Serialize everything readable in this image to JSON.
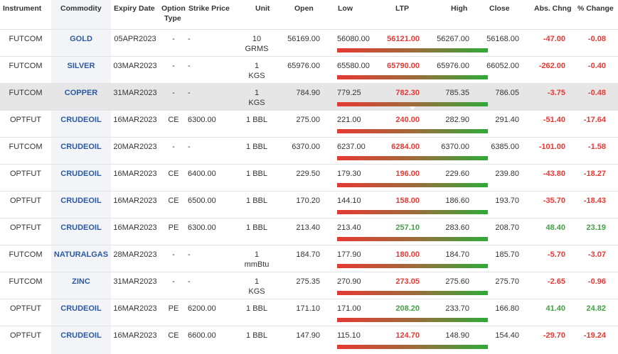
{
  "headers": {
    "instrument": "Instrument",
    "commodity": "Commodity",
    "expiry": "Expiry Date",
    "option_type_1": "Option",
    "option_type_2": "Type",
    "strike": "Strike Price",
    "unit": "Unit",
    "open": "Open",
    "low": "Low",
    "ltp": "LTP",
    "high": "High",
    "close": "Close",
    "abs_chng": "Abs. Chng",
    "pct_change": "% Change"
  },
  "colors": {
    "negative": "#e53935",
    "positive": "#43a047",
    "commodity": "#2c5aa0",
    "highlight_row": "#e6e6e6"
  },
  "rows": [
    {
      "instrument": "FUTCOM",
      "commodity": "GOLD",
      "expiry": "05APR2023",
      "option_type": "-",
      "strike": "-",
      "unit1": "10",
      "unit2": "GRMS",
      "open": "56169.00",
      "low": "56080.00",
      "ltp": "56121.00",
      "high": "56267.00",
      "close": "56168.00",
      "abs_chng": "-47.00",
      "pct_change": "-0.08",
      "direction": "neg",
      "ltp_position": 0.22
    },
    {
      "instrument": "FUTCOM",
      "commodity": "SILVER",
      "expiry": "03MAR2023",
      "option_type": "-",
      "strike": "-",
      "unit1": "1",
      "unit2": "KGS",
      "open": "65976.00",
      "low": "65580.00",
      "ltp": "65790.00",
      "high": "65976.00",
      "close": "66052.00",
      "abs_chng": "-262.00",
      "pct_change": "-0.40",
      "direction": "neg",
      "ltp_position": 0.53
    },
    {
      "instrument": "FUTCOM",
      "commodity": "COPPER",
      "expiry": "31MAR2023",
      "option_type": "-",
      "strike": "-",
      "unit1": "1",
      "unit2": "KGS",
      "open": "784.90",
      "low": "779.25",
      "ltp": "782.30",
      "high": "785.35",
      "close": "786.05",
      "abs_chng": "-3.75",
      "pct_change": "-0.48",
      "direction": "neg",
      "ltp_position": 0.5,
      "highlight": true
    },
    {
      "instrument": "OPTFUT",
      "commodity": "CRUDEOIL",
      "expiry": "16MAR2023",
      "option_type": "CE",
      "strike": "6300.00",
      "unit1": "1 BBL",
      "unit2": "",
      "open": "275.00",
      "low": "221.00",
      "ltp": "240.00",
      "high": "282.90",
      "close": "291.40",
      "abs_chng": "-51.40",
      "pct_change": "-17.64",
      "direction": "neg",
      "ltp_position": 0.31
    },
    {
      "instrument": "FUTCOM",
      "commodity": "CRUDEOIL",
      "expiry": "20MAR2023",
      "option_type": "-",
      "strike": "-",
      "unit1": "1 BBL",
      "unit2": "",
      "open": "6370.00",
      "low": "6237.00",
      "ltp": "6284.00",
      "high": "6370.00",
      "close": "6385.00",
      "abs_chng": "-101.00",
      "pct_change": "-1.58",
      "direction": "neg",
      "ltp_position": 0.35
    },
    {
      "instrument": "OPTFUT",
      "commodity": "CRUDEOIL",
      "expiry": "16MAR2023",
      "option_type": "CE",
      "strike": "6400.00",
      "unit1": "1 BBL",
      "unit2": "",
      "open": "229.50",
      "low": "179.30",
      "ltp": "196.00",
      "high": "229.60",
      "close": "239.80",
      "abs_chng": "-43.80",
      "pct_change": "-18.27",
      "direction": "neg",
      "ltp_position": 0.33
    },
    {
      "instrument": "OPTFUT",
      "commodity": "CRUDEOIL",
      "expiry": "16MAR2023",
      "option_type": "CE",
      "strike": "6500.00",
      "unit1": "1 BBL",
      "unit2": "",
      "open": "170.20",
      "low": "144.10",
      "ltp": "158.00",
      "high": "186.60",
      "close": "193.70",
      "abs_chng": "-35.70",
      "pct_change": "-18.43",
      "direction": "neg",
      "ltp_position": 0.33
    },
    {
      "instrument": "OPTFUT",
      "commodity": "CRUDEOIL",
      "expiry": "16MAR2023",
      "option_type": "PE",
      "strike": "6300.00",
      "unit1": "1 BBL",
      "unit2": "",
      "open": "213.40",
      "low": "213.40",
      "ltp": "257.10",
      "high": "283.60",
      "close": "208.70",
      "abs_chng": "48.40",
      "pct_change": "23.19",
      "direction": "pos",
      "ltp_position": 0.62
    },
    {
      "instrument": "FUTCOM",
      "commodity": "NATURALGAS",
      "expiry": "28MAR2023",
      "option_type": "-",
      "strike": "-",
      "unit1": "1",
      "unit2": "mmBtu",
      "open": "184.70",
      "low": "177.90",
      "ltp": "180.00",
      "high": "184.70",
      "close": "185.70",
      "abs_chng": "-5.70",
      "pct_change": "-3.07",
      "direction": "neg",
      "ltp_position": 0.31
    },
    {
      "instrument": "FUTCOM",
      "commodity": "ZINC",
      "expiry": "31MAR2023",
      "option_type": "-",
      "strike": "-",
      "unit1": "1",
      "unit2": "KGS",
      "open": "275.35",
      "low": "270.90",
      "ltp": "273.05",
      "high": "275.60",
      "close": "275.70",
      "abs_chng": "-2.65",
      "pct_change": "-0.96",
      "direction": "neg",
      "ltp_position": 0.46
    },
    {
      "instrument": "OPTFUT",
      "commodity": "CRUDEOIL",
      "expiry": "16MAR2023",
      "option_type": "PE",
      "strike": "6200.00",
      "unit1": "1 BBL",
      "unit2": "",
      "open": "171.10",
      "low": "171.00",
      "ltp": "208.20",
      "high": "233.70",
      "close": "166.80",
      "abs_chng": "41.40",
      "pct_change": "24.82",
      "direction": "pos",
      "ltp_position": 0.6
    },
    {
      "instrument": "OPTFUT",
      "commodity": "CRUDEOIL",
      "expiry": "16MAR2023",
      "option_type": "CE",
      "strike": "6600.00",
      "unit1": "1 BBL",
      "unit2": "",
      "open": "147.90",
      "low": "115.10",
      "ltp": "124.70",
      "high": "148.90",
      "close": "154.40",
      "abs_chng": "-29.70",
      "pct_change": "-19.24",
      "direction": "neg",
      "ltp_position": 0.2
    }
  ]
}
